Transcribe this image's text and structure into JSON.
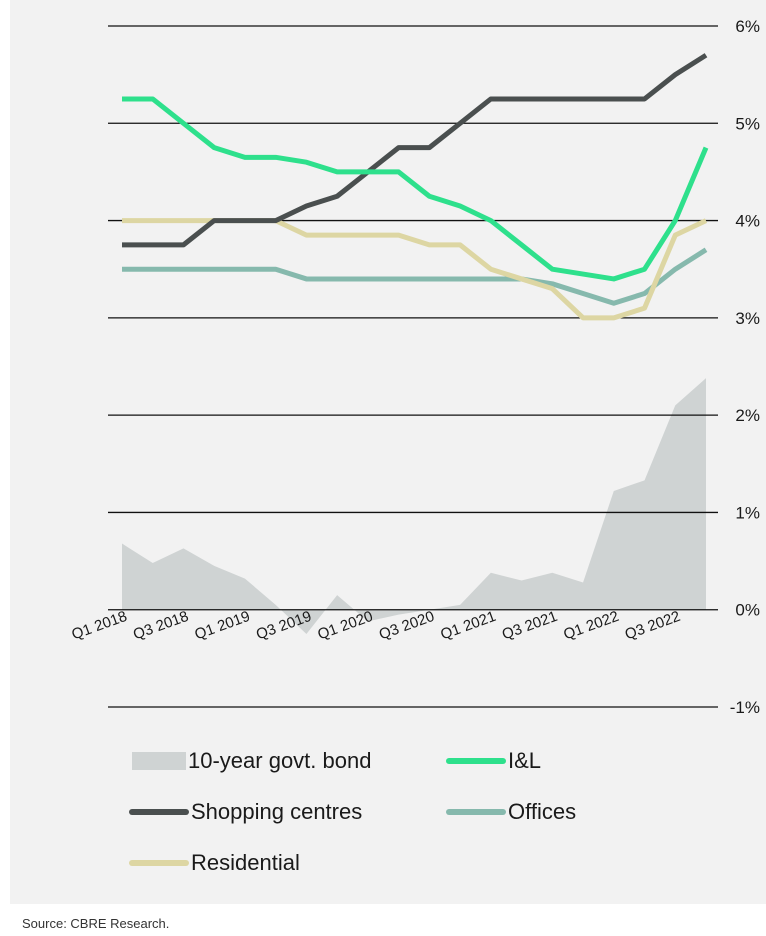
{
  "chart_data": {
    "type": "line",
    "title": "",
    "x": [
      "Q1 2018",
      "Q2 2018",
      "Q3 2018",
      "Q4 2018",
      "Q1 2019",
      "Q2 2019",
      "Q3 2019",
      "Q4 2019",
      "Q1 2020",
      "Q2 2020",
      "Q3 2020",
      "Q4 2020",
      "Q1 2021",
      "Q2 2021",
      "Q3 2021",
      "Q4 2021",
      "Q1 2022",
      "Q2 2022",
      "Q3 2022",
      "Q4 2022"
    ],
    "x_tick_labels": [
      "Q1 2018",
      "Q3 2018",
      "Q1 2019",
      "Q3 2019",
      "Q1 2020",
      "Q3 2020",
      "Q1 2021",
      "Q3 2021",
      "Q1 2022",
      "Q3 2022"
    ],
    "y_ticks": [
      "6%",
      "5%",
      "4%",
      "3%",
      "2%",
      "1%",
      "0%",
      "-1%"
    ],
    "ylim": [
      -1,
      6
    ],
    "grid": "horizontal",
    "legend_position": "bottom",
    "series": [
      {
        "name": "10-year govt. bond",
        "type": "area",
        "color": "#cfd3d3",
        "values": [
          0.68,
          0.48,
          0.63,
          0.45,
          0.32,
          0.05,
          -0.25,
          0.15,
          -0.12,
          -0.05,
          0.0,
          0.05,
          0.38,
          0.3,
          0.38,
          0.28,
          1.22,
          1.33,
          2.1,
          2.38
        ]
      },
      {
        "name": "I&L",
        "type": "line",
        "color": "#2ee08c",
        "values": [
          5.25,
          5.25,
          5.0,
          4.75,
          4.65,
          4.65,
          4.6,
          4.5,
          4.5,
          4.5,
          4.25,
          4.15,
          4.0,
          3.75,
          3.5,
          3.45,
          3.4,
          3.5,
          4.0,
          4.75
        ]
      },
      {
        "name": "Shopping centres",
        "type": "line",
        "color": "#4a4f4f",
        "values": [
          3.75,
          3.75,
          3.75,
          4.0,
          4.0,
          4.0,
          4.15,
          4.25,
          4.5,
          4.75,
          4.75,
          5.0,
          5.25,
          5.25,
          5.25,
          5.25,
          5.25,
          5.25,
          5.5,
          5.7
        ]
      },
      {
        "name": "Offices",
        "type": "line",
        "color": "#86b9ad",
        "values": [
          3.5,
          3.5,
          3.5,
          3.5,
          3.5,
          3.5,
          3.4,
          3.4,
          3.4,
          3.4,
          3.4,
          3.4,
          3.4,
          3.4,
          3.35,
          3.25,
          3.15,
          3.25,
          3.5,
          3.7
        ]
      },
      {
        "name": "Residential",
        "type": "line",
        "color": "#ddd6a3",
        "values": [
          4.0,
          4.0,
          4.0,
          4.0,
          4.0,
          4.0,
          3.85,
          3.85,
          3.85,
          3.85,
          3.75,
          3.75,
          3.5,
          3.4,
          3.3,
          3.0,
          3.0,
          3.1,
          3.85,
          4.0
        ]
      }
    ]
  },
  "legend": {
    "bond": "10-year govt. bond",
    "il": "I&L",
    "shopping": "Shopping centres",
    "offices": "Offices",
    "residential": "Residential"
  },
  "source": "Source: CBRE Research."
}
